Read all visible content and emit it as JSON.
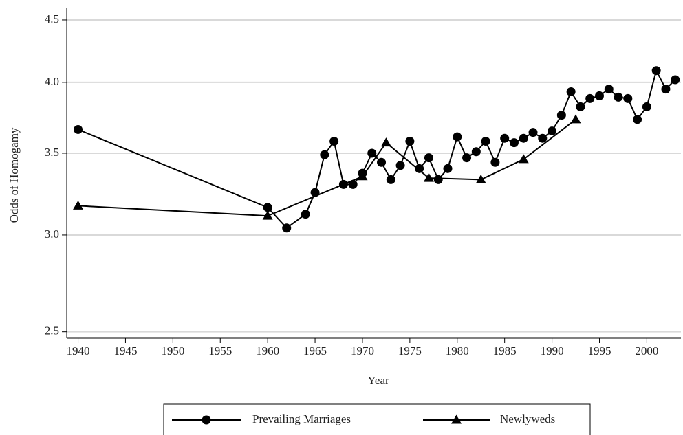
{
  "chart_data": {
    "type": "line",
    "x_label": "Year",
    "y_label": "Odds of Homogamy",
    "log_y": true,
    "grid": true,
    "legend": "bottom",
    "xlim": [
      1938.8,
      2003.6
    ],
    "ylim": [
      2.47,
      4.6
    ],
    "xticks": [
      1940,
      1945,
      1950,
      1955,
      1960,
      1965,
      1970,
      1975,
      1980,
      1985,
      1990,
      1995,
      2000
    ],
    "yticks": [
      2.5,
      {
        "value": 3,
        "label": "3.0"
      },
      3.5,
      {
        "value": 4,
        "label": "4.0"
      },
      4.5
    ],
    "series": [
      {
        "name": "Prevailing Marriages",
        "color": "#000000",
        "marker": "circle",
        "x": [
          1940,
          1960,
          1962,
          1964,
          1965,
          1966,
          1967,
          1968,
          1969,
          1970,
          1971,
          1972,
          1973,
          1974,
          1975,
          1976,
          1977,
          1978,
          1979,
          1980,
          1981,
          1982,
          1983,
          1984,
          1985,
          1986,
          1987,
          1988,
          1989,
          1990,
          1991,
          1992,
          1993,
          1994,
          1995,
          1996,
          1997,
          1998,
          1999,
          2000,
          2001,
          2002,
          2003
        ],
        "values": [
          3.66,
          3.16,
          3.04,
          3.12,
          3.25,
          3.49,
          3.58,
          3.3,
          3.3,
          3.37,
          3.5,
          3.44,
          3.33,
          3.42,
          3.58,
          3.4,
          3.47,
          3.33,
          3.4,
          3.61,
          3.47,
          3.51,
          3.58,
          3.44,
          3.6,
          3.57,
          3.6,
          3.64,
          3.6,
          3.65,
          3.76,
          3.93,
          3.82,
          3.88,
          3.9,
          3.95,
          3.89,
          3.88,
          3.73,
          3.82,
          4.09,
          3.95,
          4.02
        ]
      },
      {
        "name": "Newlyweds",
        "color": "#000000",
        "marker": "triangle",
        "x": [
          1940,
          1960,
          1970,
          1972.5,
          1977,
          1982.5,
          1987,
          1992.5
        ],
        "values": [
          3.17,
          3.11,
          3.35,
          3.57,
          3.34,
          3.33,
          3.46,
          3.73
        ]
      }
    ]
  }
}
